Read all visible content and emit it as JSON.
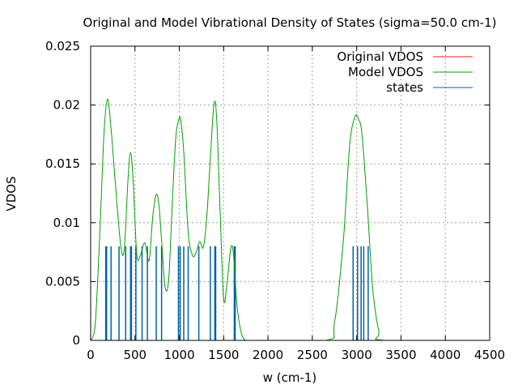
{
  "chart_data": {
    "type": "line",
    "title": "Original and Model Vibrational Density of States (sigma=50.0 cm-1)",
    "xlabel": "w (cm-1)",
    "ylabel": "VDOS",
    "xlim": [
      0,
      4500
    ],
    "ylim": [
      0,
      0.025
    ],
    "x_ticks": [
      0,
      500,
      1000,
      1500,
      2000,
      2500,
      3000,
      3500,
      4000,
      4500
    ],
    "x_tick_labels": [
      "0",
      "500",
      "1000",
      "1500",
      "2000",
      "2500",
      "3000",
      "3500",
      "4000",
      "4500"
    ],
    "y_ticks": [
      0,
      0.005,
      0.01,
      0.015,
      0.02,
      0.025
    ],
    "y_tick_labels": [
      "0",
      "0.005",
      "0.01",
      "0.015",
      "0.02",
      "0.025"
    ],
    "grid": true,
    "legend_position": "top-right",
    "series": [
      {
        "name": "Original VDOS",
        "color": "#e41a1c",
        "x": [],
        "y": []
      },
      {
        "name": "Model VDOS",
        "color": "#00a000",
        "x": [
          0,
          50,
          100,
          150,
          190,
          230,
          280,
          340,
          380,
          420,
          450,
          480,
          520,
          560,
          610,
          660,
          700,
          740,
          770,
          800,
          840,
          880,
          920,
          960,
          1000,
          1020,
          1050,
          1100,
          1150,
          1190,
          1230,
          1270,
          1310,
          1350,
          1390,
          1420,
          1460,
          1500,
          1540,
          1580,
          1610,
          1650,
          1700,
          1750,
          1800,
          2650,
          2750,
          2850,
          2920,
          2980,
          3020,
          3060,
          3120,
          3180,
          3250,
          3320,
          4500
        ],
        "y": [
          0.0,
          0.0012,
          0.0085,
          0.0175,
          0.0205,
          0.018,
          0.0132,
          0.008,
          0.0078,
          0.0135,
          0.016,
          0.0135,
          0.0073,
          0.0072,
          0.0083,
          0.0068,
          0.0105,
          0.0124,
          0.0115,
          0.0085,
          0.0045,
          0.0052,
          0.0115,
          0.0172,
          0.0189,
          0.0185,
          0.016,
          0.0092,
          0.0072,
          0.0075,
          0.0084,
          0.0079,
          0.0105,
          0.0155,
          0.02,
          0.019,
          0.011,
          0.0035,
          0.005,
          0.0078,
          0.0074,
          0.003,
          0.0006,
          0.0,
          0.0,
          0.0,
          0.0015,
          0.0085,
          0.0165,
          0.019,
          0.0188,
          0.0175,
          0.0115,
          0.0045,
          0.0008,
          0.0,
          0.0
        ]
      }
    ],
    "states": {
      "name": "states",
      "color": "#0060ad",
      "height": 0.008,
      "x": [
        170,
        180,
        230,
        320,
        395,
        450,
        460,
        510,
        580,
        640,
        740,
        800,
        990,
        1010,
        1050,
        1100,
        1220,
        1350,
        1400,
        1410,
        1620,
        1630,
        2960,
        3010,
        3050,
        3080,
        3130
      ]
    }
  }
}
